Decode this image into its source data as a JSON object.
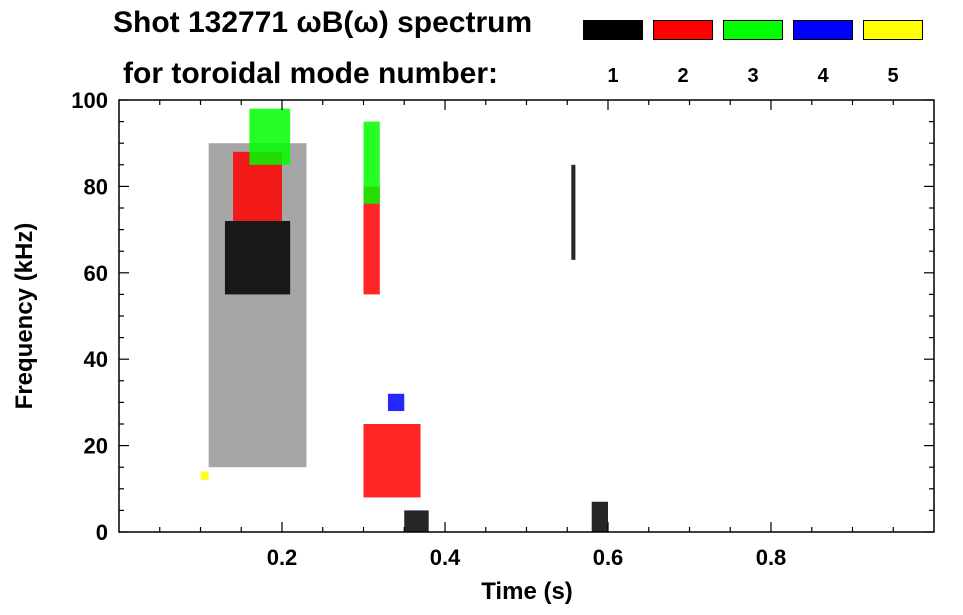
{
  "chart_data": {
    "type": "heatmap",
    "title_line1": "Shot 132771 ωB(ω) spectrum",
    "title_line2": "for toroidal mode number:",
    "xlabel": "Time (s)",
    "ylabel": "Frequency (kHz)",
    "xlim": [
      0.0,
      1.0
    ],
    "ylim": [
      0,
      100
    ],
    "x_ticks": [
      0.2,
      0.4,
      0.6,
      0.8
    ],
    "x_tick_labels": [
      "0.2",
      "0.4",
      "0.6",
      "0.8"
    ],
    "y_ticks": [
      0,
      20,
      40,
      60,
      80,
      100
    ],
    "y_tick_labels": [
      "0",
      "20",
      "40",
      "60",
      "80",
      "100"
    ],
    "legend": [
      {
        "label": "1",
        "color": "#000000"
      },
      {
        "label": "2",
        "color": "#ff0000"
      },
      {
        "label": "3",
        "color": "#00ff00"
      },
      {
        "label": "4",
        "color": "#0000ff"
      },
      {
        "label": "5",
        "color": "#ffff00"
      }
    ],
    "regions": [
      {
        "mode": 1,
        "t": [
          0.13,
          0.21
        ],
        "f": [
          55,
          72
        ]
      },
      {
        "mode": 1,
        "t": [
          0.11,
          0.23
        ],
        "f": [
          15,
          90
        ]
      },
      {
        "mode": 1,
        "t": [
          0.35,
          0.38
        ],
        "f": [
          0,
          5
        ]
      },
      {
        "mode": 1,
        "t": [
          0.58,
          0.6
        ],
        "f": [
          0,
          7
        ]
      },
      {
        "mode": 1,
        "t": [
          0.555,
          0.56
        ],
        "f": [
          63,
          85
        ]
      },
      {
        "mode": 2,
        "t": [
          0.14,
          0.2
        ],
        "f": [
          72,
          88
        ]
      },
      {
        "mode": 2,
        "t": [
          0.3,
          0.32
        ],
        "f": [
          55,
          80
        ]
      },
      {
        "mode": 2,
        "t": [
          0.3,
          0.37
        ],
        "f": [
          8,
          25
        ]
      },
      {
        "mode": 3,
        "t": [
          0.16,
          0.21
        ],
        "f": [
          85,
          98
        ]
      },
      {
        "mode": 3,
        "t": [
          0.3,
          0.32
        ],
        "f": [
          76,
          95
        ]
      },
      {
        "mode": 4,
        "t": [
          0.33,
          0.35
        ],
        "f": [
          28,
          32
        ]
      },
      {
        "mode": 5,
        "t": [
          0.1,
          0.11
        ],
        "f": [
          12,
          14
        ]
      }
    ]
  }
}
